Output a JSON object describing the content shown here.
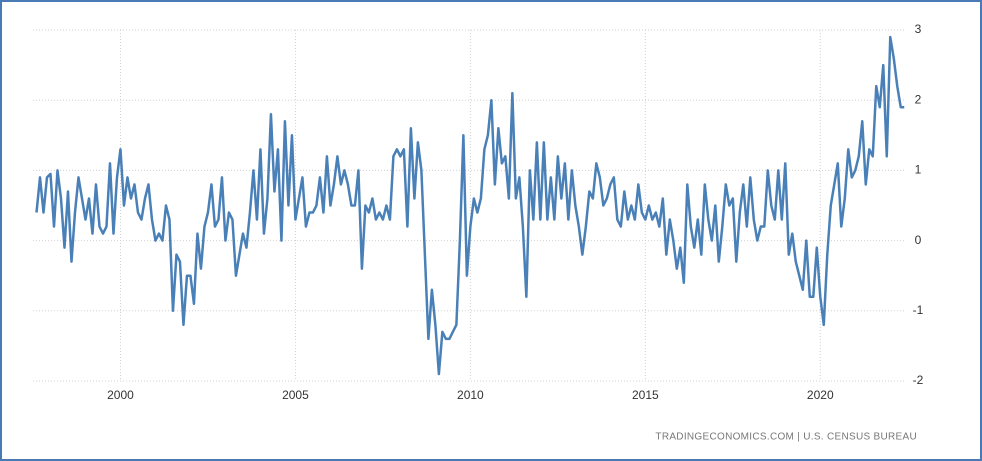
{
  "chart_data": {
    "type": "line",
    "x": [
      1997.6,
      1997.7,
      1997.8,
      1997.9,
      1998.0,
      1998.1,
      1998.2,
      1998.3,
      1998.4,
      1998.5,
      1998.6,
      1998.7,
      1998.8,
      1998.9,
      1999.0,
      1999.1,
      1999.2,
      1999.3,
      1999.4,
      1999.5,
      1999.6,
      1999.7,
      1999.8,
      1999.9,
      2000.0,
      2000.1,
      2000.2,
      2000.3,
      2000.4,
      2000.5,
      2000.6,
      2000.7,
      2000.8,
      2000.9,
      2001.0,
      2001.1,
      2001.2,
      2001.3,
      2001.4,
      2001.5,
      2001.6,
      2001.7,
      2001.8,
      2001.9,
      2002.0,
      2002.1,
      2002.2,
      2002.3,
      2002.4,
      2002.5,
      2002.6,
      2002.7,
      2002.8,
      2002.9,
      2003.0,
      2003.1,
      2003.2,
      2003.3,
      2003.4,
      2003.5,
      2003.6,
      2003.7,
      2003.8,
      2003.9,
      2004.0,
      2004.1,
      2004.2,
      2004.3,
      2004.4,
      2004.5,
      2004.6,
      2004.7,
      2004.8,
      2004.9,
      2005.0,
      2005.1,
      2005.2,
      2005.3,
      2005.4,
      2005.5,
      2005.6,
      2005.7,
      2005.8,
      2005.9,
      2006.0,
      2006.1,
      2006.2,
      2006.3,
      2006.4,
      2006.5,
      2006.6,
      2006.7,
      2006.8,
      2006.9,
      2007.0,
      2007.1,
      2007.2,
      2007.3,
      2007.4,
      2007.5,
      2007.6,
      2007.7,
      2007.8,
      2007.9,
      2008.0,
      2008.1,
      2008.2,
      2008.3,
      2008.4,
      2008.5,
      2008.6,
      2008.7,
      2008.8,
      2008.9,
      2009.0,
      2009.1,
      2009.2,
      2009.3,
      2009.4,
      2009.5,
      2009.6,
      2009.7,
      2009.8,
      2009.9,
      2010.0,
      2010.1,
      2010.2,
      2010.3,
      2010.4,
      2010.5,
      2010.6,
      2010.7,
      2010.8,
      2010.9,
      2011.0,
      2011.1,
      2011.2,
      2011.3,
      2011.4,
      2011.5,
      2011.6,
      2011.7,
      2011.8,
      2011.9,
      2012.0,
      2012.1,
      2012.2,
      2012.3,
      2012.4,
      2012.5,
      2012.6,
      2012.7,
      2012.8,
      2012.9,
      2013.0,
      2013.1,
      2013.2,
      2013.3,
      2013.4,
      2013.5,
      2013.6,
      2013.7,
      2013.8,
      2013.9,
      2014.0,
      2014.1,
      2014.2,
      2014.3,
      2014.4,
      2014.5,
      2014.6,
      2014.7,
      2014.8,
      2014.9,
      2015.0,
      2015.1,
      2015.2,
      2015.3,
      2015.4,
      2015.5,
      2015.6,
      2015.7,
      2015.8,
      2015.9,
      2016.0,
      2016.1,
      2016.2,
      2016.3,
      2016.4,
      2016.5,
      2016.6,
      2016.7,
      2016.8,
      2016.9,
      2017.0,
      2017.1,
      2017.2,
      2017.3,
      2017.4,
      2017.5,
      2017.6,
      2017.7,
      2017.8,
      2017.9,
      2018.0,
      2018.1,
      2018.2,
      2018.3,
      2018.4,
      2018.5,
      2018.6,
      2018.7,
      2018.8,
      2018.9,
      2019.0,
      2019.1,
      2019.2,
      2019.3,
      2019.4,
      2019.5,
      2019.6,
      2019.7,
      2019.8,
      2019.9,
      2020.0,
      2020.1,
      2020.2,
      2020.3,
      2020.4,
      2020.5,
      2020.6,
      2020.7,
      2020.8,
      2020.9,
      2021.0,
      2021.1,
      2021.2,
      2021.3,
      2021.4,
      2021.5,
      2021.6,
      2021.7,
      2021.8,
      2021.9,
      2022.0,
      2022.1,
      2022.2,
      2022.3,
      2022.4
    ],
    "series": [
      {
        "color": "#4a80b8",
        "values": [
          0.4,
          0.9,
          0.4,
          0.9,
          0.95,
          0.2,
          1.0,
          0.6,
          -0.1,
          0.7,
          -0.3,
          0.4,
          0.9,
          0.6,
          0.3,
          0.6,
          0.1,
          0.8,
          0.2,
          0.1,
          0.2,
          1.1,
          0.1,
          0.9,
          1.3,
          0.5,
          0.9,
          0.6,
          0.8,
          0.4,
          0.3,
          0.6,
          0.8,
          0.3,
          0.0,
          0.1,
          0.0,
          0.5,
          0.3,
          -1.0,
          -0.2,
          -0.3,
          -1.2,
          -0.5,
          -0.5,
          -0.9,
          0.1,
          -0.4,
          0.2,
          0.4,
          0.8,
          0.2,
          0.3,
          0.9,
          0.0,
          0.4,
          0.3,
          -0.5,
          -0.2,
          0.1,
          -0.1,
          0.4,
          1.0,
          0.3,
          1.3,
          0.1,
          0.6,
          1.8,
          0.7,
          1.3,
          0.0,
          1.7,
          0.5,
          1.5,
          0.3,
          0.6,
          0.9,
          0.2,
          0.4,
          0.4,
          0.5,
          0.9,
          0.4,
          1.2,
          0.5,
          0.8,
          1.2,
          0.8,
          1.0,
          0.8,
          0.5,
          0.5,
          1.0,
          -0.4,
          0.5,
          0.4,
          0.6,
          0.3,
          0.4,
          0.3,
          0.5,
          0.3,
          1.2,
          1.3,
          1.2,
          1.3,
          0.2,
          1.6,
          0.6,
          1.4,
          1.0,
          -0.2,
          -1.4,
          -0.7,
          -1.2,
          -1.9,
          -1.3,
          -1.4,
          -1.4,
          -1.3,
          -1.2,
          0.0,
          1.5,
          -0.5,
          0.2,
          0.6,
          0.4,
          0.6,
          1.3,
          1.5,
          2.0,
          0.8,
          1.6,
          1.1,
          1.2,
          0.6,
          2.1,
          0.6,
          0.9,
          0.2,
          -0.8,
          1.0,
          0.3,
          1.4,
          0.3,
          1.4,
          0.3,
          0.9,
          0.3,
          1.2,
          0.6,
          1.1,
          0.3,
          1.0,
          0.5,
          0.2,
          -0.2,
          0.2,
          0.7,
          0.6,
          1.1,
          0.9,
          0.5,
          0.6,
          0.8,
          0.9,
          0.3,
          0.2,
          0.7,
          0.3,
          0.5,
          0.3,
          0.8,
          0.4,
          0.3,
          0.5,
          0.3,
          0.4,
          0.2,
          0.6,
          -0.2,
          0.3,
          0.0,
          -0.4,
          -0.1,
          -0.6,
          0.8,
          0.2,
          -0.1,
          0.3,
          -0.2,
          0.8,
          0.3,
          0.0,
          0.5,
          -0.3,
          0.2,
          0.8,
          0.5,
          0.6,
          -0.3,
          0.4,
          0.8,
          0.2,
          0.9,
          0.3,
          0.0,
          0.2,
          0.2,
          1.0,
          0.5,
          0.3,
          1.0,
          0.3,
          1.1,
          -0.2,
          0.1,
          -0.3,
          -0.5,
          -0.7,
          0.0,
          -0.8,
          -0.8,
          -0.1,
          -0.8,
          -1.2,
          -0.2,
          0.5,
          0.8,
          1.1,
          0.2,
          0.6,
          1.3,
          0.9,
          1.0,
          1.2,
          1.7,
          0.8,
          1.3,
          1.2,
          2.2,
          1.9,
          2.5,
          1.2,
          2.9,
          2.6,
          2.2,
          1.9,
          1.9
        ]
      }
    ],
    "xlim": [
      1997.5,
      2022.45
    ],
    "xticks": [
      2000,
      2005,
      2010,
      2015,
      2020
    ],
    "ylim": [
      -2,
      3
    ],
    "yticks": [
      -2,
      -1,
      0,
      1,
      2,
      3
    ],
    "grid": true,
    "source": "TRADINGECONOMICS.COM  |  U.S. CENSUS BUREAU"
  }
}
